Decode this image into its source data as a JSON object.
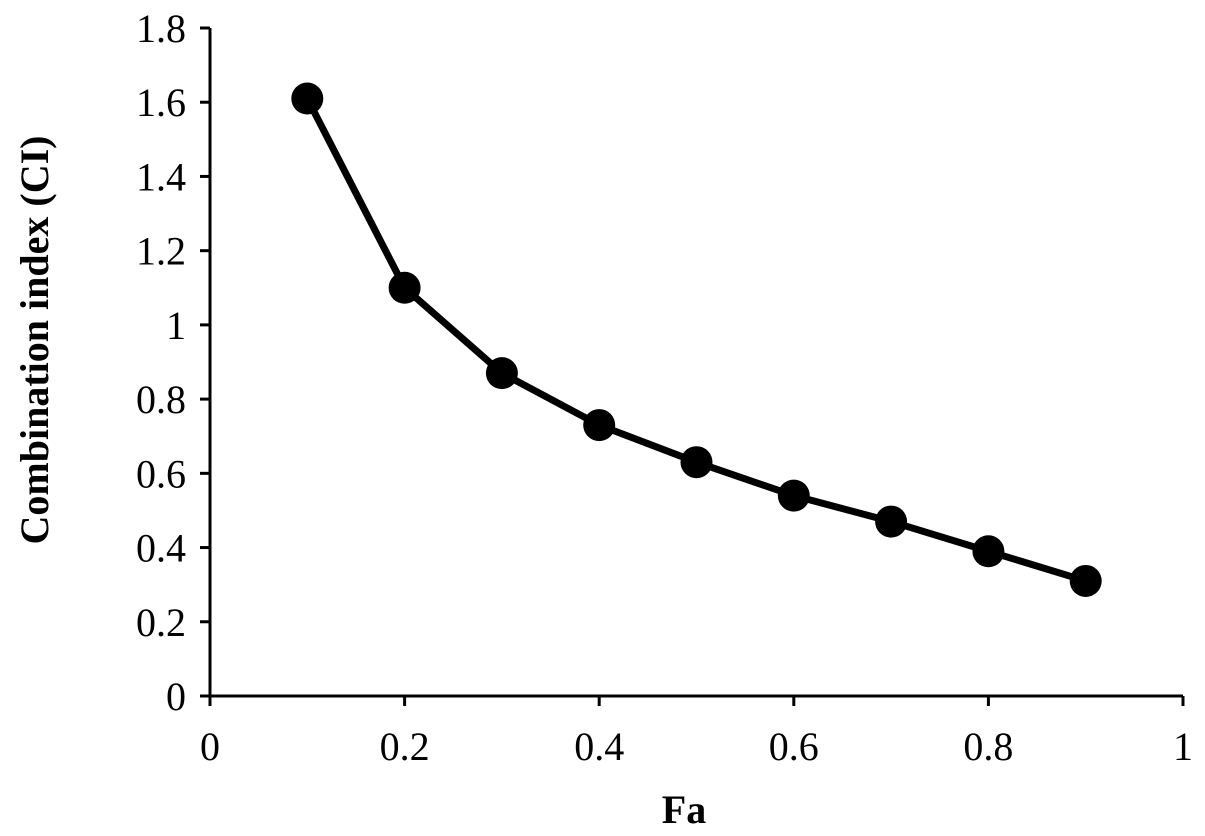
{
  "chart_data": {
    "type": "line",
    "title": "",
    "xlabel": "Fa",
    "ylabel": "Combination index (CI)",
    "xlim": [
      0,
      1
    ],
    "ylim": [
      0,
      1.8
    ],
    "xticks": [
      0,
      0.2,
      0.4,
      0.6,
      0.8,
      1
    ],
    "xtick_labels": [
      "0",
      "0.2",
      "0.4",
      "0.6",
      "0.8",
      "1"
    ],
    "yticks": [
      0,
      0.2,
      0.4,
      0.6,
      0.8,
      1,
      1.2,
      1.4,
      1.6,
      1.8
    ],
    "ytick_labels": [
      "0",
      "0.2",
      "0.4",
      "0.6",
      "0.8",
      "1",
      "1.2",
      "1.4",
      "1.6",
      "1.8"
    ],
    "grid": false,
    "legend": "none",
    "series": [
      {
        "x": [
          0.1,
          0.2,
          0.3,
          0.4,
          0.5,
          0.6,
          0.7,
          0.8,
          0.9
        ],
        "y": [
          1.61,
          1.1,
          0.87,
          0.73,
          0.63,
          0.54,
          0.47,
          0.39,
          0.31
        ],
        "color": "#000000",
        "marker": "circle"
      }
    ]
  }
}
